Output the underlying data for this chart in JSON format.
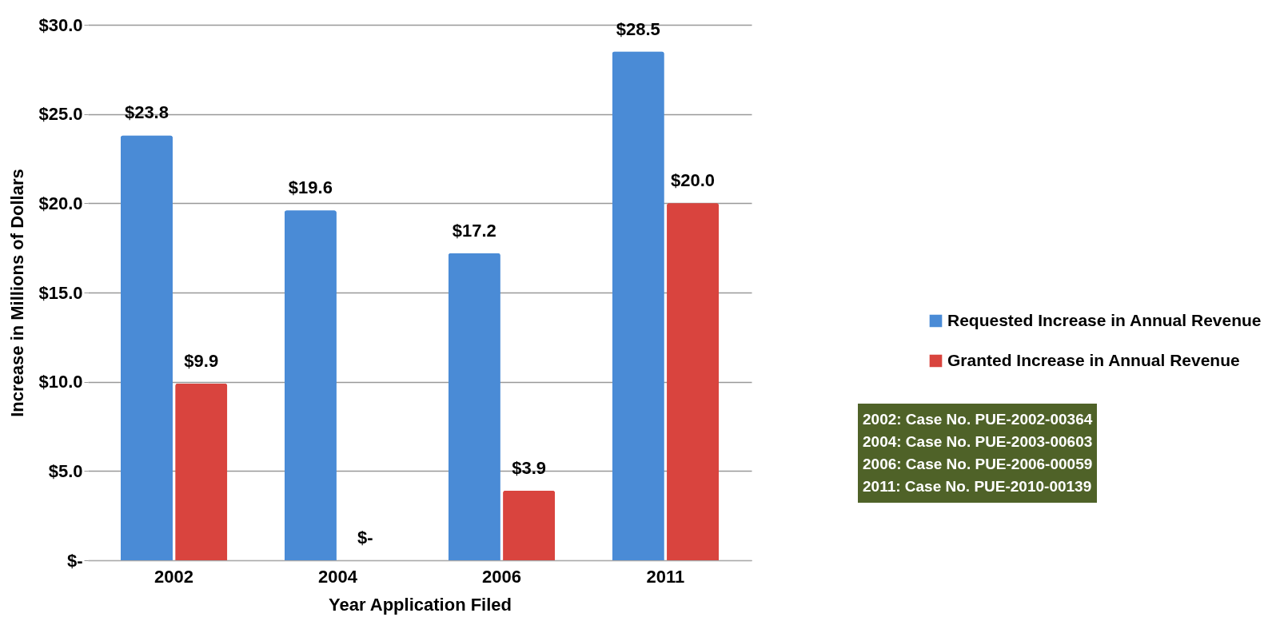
{
  "chart_data": {
    "type": "bar",
    "xlabel": "Year Application Filed",
    "ylabel": "Increase in Millions of Dollars",
    "categories": [
      "2002",
      "2004",
      "2006",
      "2011"
    ],
    "series": [
      {
        "name": "Requested Increase in Annual Revenue",
        "color": "#4a8bd6",
        "values": [
          23.8,
          19.6,
          17.2,
          28.5
        ],
        "value_labels": [
          "$23.8",
          "$19.6",
          "$17.2",
          "$28.5"
        ]
      },
      {
        "name": "Granted Increase in Annual Revenue",
        "color": "#d9443e",
        "values": [
          9.9,
          0,
          3.9,
          20.0
        ],
        "value_labels": [
          "$9.9",
          "$-",
          "$3.9",
          "$20.0"
        ]
      }
    ],
    "ylim": [
      0,
      30
    ],
    "yticks": [
      {
        "value": 0,
        "label": "$-"
      },
      {
        "value": 5,
        "label": "$5.0"
      },
      {
        "value": 10,
        "label": "$10.0"
      },
      {
        "value": 15,
        "label": "$15.0"
      },
      {
        "value": 20,
        "label": "$20.0"
      },
      {
        "value": 25,
        "label": "$25.0"
      },
      {
        "value": 30,
        "label": "$30.0"
      }
    ],
    "grid": "y",
    "legend": "right",
    "annotations": [
      "2002: Case No. PUE-2002-00364",
      "2004: Case No. PUE-2003-00603",
      "2006: Case No. PUE-2006-00059",
      "2011: Case No. PUE-2010-00139"
    ]
  }
}
